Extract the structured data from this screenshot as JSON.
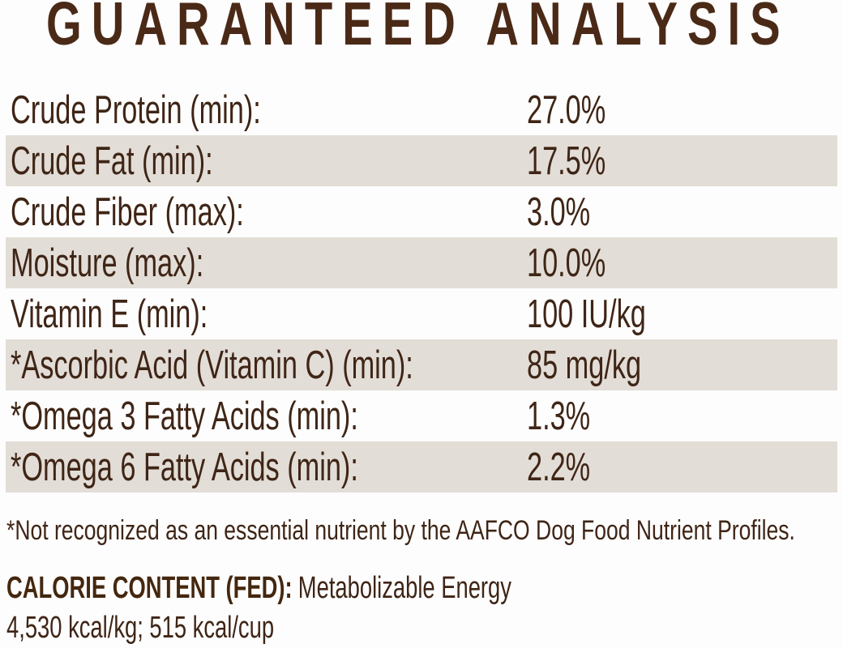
{
  "title": "GUARANTEED ANALYSIS",
  "table": {
    "rows": [
      {
        "label": "Crude Protein (min):",
        "value": "27.0%"
      },
      {
        "label": "Crude Fat (min):",
        "value": "17.5%"
      },
      {
        "label": "Crude Fiber (max):",
        "value": "3.0%"
      },
      {
        "label": "Moisture (max):",
        "value": "10.0%"
      },
      {
        "label": "Vitamin E (min):",
        "value": "100 IU/kg"
      },
      {
        "label": "*Ascorbic Acid (Vitamin C) (min):",
        "value": "85 mg/kg"
      },
      {
        "label": "*Omega 3 Fatty Acids (min):",
        "value": "1.3%"
      },
      {
        "label": "*Omega 6 Fatty Acids (min):",
        "value": "2.2%"
      }
    ]
  },
  "footnote": "*Not recognized as an essential nutrient by the AAFCO Dog Food Nutrient Profiles.",
  "calorie": {
    "heading": "CALORIE CONTENT (FED):",
    "description": "Metabolizable Energy",
    "values": "4,530 kcal/kg; 515 kcal/cup"
  },
  "colors": {
    "title_brown": "#4a2a17",
    "text_brown": "#3f2516",
    "row_shade": "#e2ddd6",
    "background": "#fdfdfd"
  }
}
